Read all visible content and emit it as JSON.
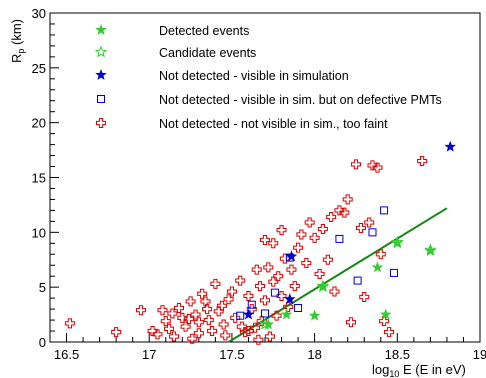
{
  "chart_data": {
    "type": "scatter",
    "xlabel": "log",
    "xlabel_sub": "10",
    "xlabel_rest": " E (E in eV)",
    "ylabel": "R",
    "ylabel_sub": "p",
    "ylabel_rest": " (km)",
    "xlim": [
      16.4,
      19.0
    ],
    "ylim": [
      0,
      30
    ],
    "x_ticks": [
      16.5,
      17,
      17.5,
      18,
      18.5,
      19
    ],
    "x_tick_labels": [
      "16.5",
      "17",
      "17.5",
      "18",
      "18.5",
      "19"
    ],
    "y_ticks": [
      0,
      5,
      10,
      15,
      20,
      25,
      30
    ],
    "y_tick_labels": [
      "0",
      "5",
      "10",
      "15",
      "20",
      "25",
      "30"
    ],
    "grid": false,
    "legend_position": "top-left",
    "series": [
      {
        "name": "Detected events",
        "marker": "filled-star",
        "color": "#33cc33",
        "points": [
          [
            17.72,
            1.6
          ],
          [
            17.83,
            2.5
          ],
          [
            18.0,
            2.4
          ],
          [
            18.05,
            5.0
          ],
          [
            18.38,
            6.8
          ],
          [
            18.43,
            2.5
          ],
          [
            18.5,
            9.0
          ],
          [
            18.7,
            8.3
          ]
        ]
      },
      {
        "name": "Candidate events",
        "marker": "open-star",
        "color": "#33cc33",
        "points": [
          [
            17.7,
            1.6
          ],
          [
            18.05,
            5.1
          ],
          [
            18.5,
            9.1
          ],
          [
            18.7,
            8.4
          ]
        ]
      },
      {
        "name": "Not detected - visible in simulation",
        "marker": "filled-star",
        "color": "#0000cc",
        "points": [
          [
            17.6,
            2.5
          ],
          [
            17.85,
            3.9
          ],
          [
            17.86,
            7.8
          ],
          [
            18.82,
            17.8
          ]
        ]
      },
      {
        "name": "Not detected - visible in sim. but on defective PMTs",
        "marker": "open-square",
        "color": "#0000cc",
        "points": [
          [
            17.55,
            2.4
          ],
          [
            17.62,
            3.4
          ],
          [
            17.7,
            2.6
          ],
          [
            17.76,
            4.5
          ],
          [
            17.85,
            7.7
          ],
          [
            17.9,
            3.1
          ],
          [
            18.15,
            9.4
          ],
          [
            18.26,
            5.6
          ],
          [
            18.35,
            10.0
          ],
          [
            18.42,
            12.0
          ],
          [
            18.48,
            6.3
          ]
        ]
      },
      {
        "name": "Not detected - not visible in sim., too faint",
        "marker": "open-cross",
        "color": "#dd0000",
        "points": [
          [
            16.52,
            1.7
          ],
          [
            16.8,
            0.9
          ],
          [
            16.95,
            2.9
          ],
          [
            17.05,
            0.7
          ],
          [
            17.08,
            2.9
          ],
          [
            17.1,
            1.9
          ],
          [
            17.12,
            1.2
          ],
          [
            17.15,
            0.5
          ],
          [
            17.18,
            3.1
          ],
          [
            17.2,
            2.2
          ],
          [
            17.22,
            1.4
          ],
          [
            17.25,
            3.7
          ],
          [
            17.28,
            2.5
          ],
          [
            17.3,
            1.8
          ],
          [
            17.32,
            4.4
          ],
          [
            17.35,
            3.0
          ],
          [
            17.38,
            1.0
          ],
          [
            17.4,
            5.3
          ],
          [
            17.42,
            2.8
          ],
          [
            17.45,
            1.6
          ],
          [
            17.48,
            3.9
          ],
          [
            17.5,
            4.6
          ],
          [
            17.52,
            2.2
          ],
          [
            17.55,
            5.6
          ],
          [
            17.58,
            0.9
          ],
          [
            17.6,
            4.2
          ],
          [
            17.62,
            3.0
          ],
          [
            17.64,
            1.3
          ],
          [
            17.65,
            6.6
          ],
          [
            17.67,
            5.1
          ],
          [
            17.68,
            1.9
          ],
          [
            17.7,
            3.8
          ],
          [
            17.72,
            6.8
          ],
          [
            17.73,
            0.5
          ],
          [
            17.75,
            5.5
          ],
          [
            17.77,
            2.4
          ],
          [
            17.78,
            6.0
          ],
          [
            17.8,
            4.2
          ],
          [
            17.82,
            7.6
          ],
          [
            17.84,
            3.2
          ],
          [
            17.86,
            6.6
          ],
          [
            17.88,
            5.1
          ],
          [
            17.7,
            9.3
          ],
          [
            17.75,
            9.0
          ],
          [
            17.8,
            10.2
          ],
          [
            17.9,
            8.6
          ],
          [
            17.92,
            9.8
          ],
          [
            17.95,
            7.2
          ],
          [
            17.97,
            10.9
          ],
          [
            18.0,
            9.5
          ],
          [
            18.03,
            6.2
          ],
          [
            18.05,
            10.3
          ],
          [
            18.08,
            7.5
          ],
          [
            18.1,
            11.4
          ],
          [
            18.12,
            4.6
          ],
          [
            18.15,
            12.0
          ],
          [
            18.18,
            11.8
          ],
          [
            18.2,
            13.0
          ],
          [
            18.22,
            1.8
          ],
          [
            18.25,
            16.2
          ],
          [
            18.28,
            10.4
          ],
          [
            18.3,
            4.1
          ],
          [
            18.33,
            10.9
          ],
          [
            18.35,
            16.1
          ],
          [
            18.38,
            15.9
          ],
          [
            18.4,
            8.0
          ],
          [
            18.42,
            1.9
          ],
          [
            18.45,
            0.9
          ],
          [
            18.65,
            16.5
          ],
          [
            17.02,
            1.0
          ],
          [
            17.14,
            2.6
          ],
          [
            17.26,
            0.3
          ],
          [
            17.36,
            2.0
          ],
          [
            17.46,
            0.6
          ],
          [
            17.56,
            1.4
          ],
          [
            17.66,
            0.2
          ],
          [
            17.6,
            1.0
          ],
          [
            17.44,
            3.3
          ],
          [
            17.34,
            3.7
          ],
          [
            17.24,
            2.1
          ],
          [
            17.3,
            0.8
          ]
        ]
      }
    ],
    "fit_line": {
      "name": "",
      "color": "#118811",
      "x": [
        17.48,
        18.8
      ],
      "y": [
        0,
        12.2
      ]
    }
  }
}
